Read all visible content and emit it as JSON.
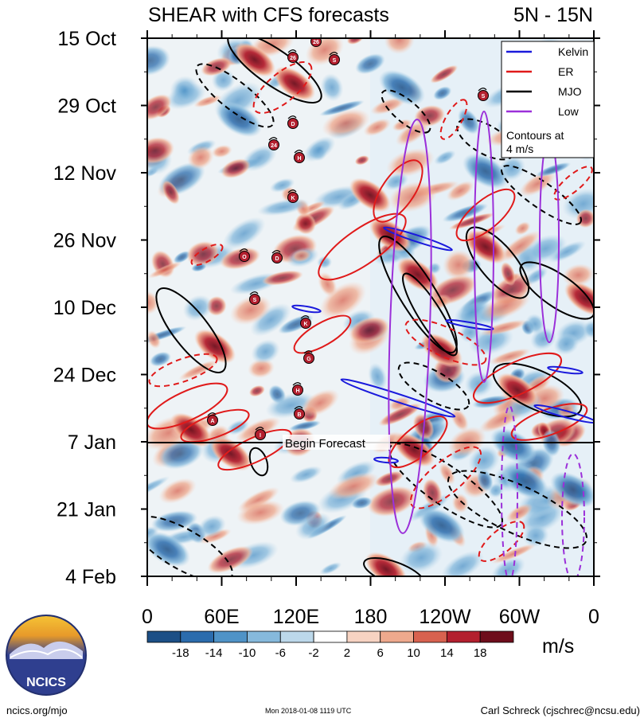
{
  "chart_data": {
    "type": "heatmap",
    "title": "SHEAR with CFS forecasts",
    "region": "5N - 15N",
    "y_axis": {
      "label": "",
      "ticks": [
        "15 Oct",
        "29 Oct",
        "12 Nov",
        "26 Nov",
        "10 Dec",
        "24 Dec",
        "7 Jan",
        "21 Jan",
        "4 Feb"
      ],
      "orientation": "time increasing downward"
    },
    "x_axis": {
      "label": "",
      "ticks": [
        "0",
        "60E",
        "120E",
        "180",
        "120W",
        "60W",
        "0"
      ],
      "range_degrees_east": [
        0,
        360
      ]
    },
    "forecast_marker": {
      "label": "Begin Forecast",
      "date": "7 Jan"
    },
    "colorbar": {
      "units": "m/s",
      "levels": [
        -18,
        -14,
        -10,
        -6,
        -2,
        2,
        6,
        10,
        14,
        18
      ],
      "labels": [
        "-18",
        "-14",
        "-10",
        "-6",
        "-2",
        "2",
        "6",
        "10",
        "14",
        "18"
      ],
      "colors": [
        "#1c4f86",
        "#2b6cad",
        "#4f93c7",
        "#86b9dc",
        "#bcd8ea",
        "#ffffff",
        "#f7d3c2",
        "#eea98d",
        "#d8624f",
        "#b31f2e",
        "#6e0d1b"
      ]
    },
    "legend": {
      "entries": [
        {
          "name": "Kelvin",
          "color": "#1a1adc"
        },
        {
          "name": "ER",
          "color": "#e01a1a"
        },
        {
          "name": "MJO",
          "color": "#000000"
        },
        {
          "name": "Low",
          "color": "#9b30d9"
        }
      ],
      "note": "Contours at\n4 m/s",
      "placement": "top-right"
    },
    "storm_symbols": [
      "26",
      "S",
      "D",
      "24",
      "H",
      "K",
      "O",
      "D",
      "S",
      "K",
      "G",
      "H",
      "B",
      "A",
      "I",
      "S",
      "26"
    ]
  },
  "footer": {
    "website": "ncics.org/mjo",
    "timestamp": "Mon 2018-01-08 1119 UTC",
    "author": "Carl Schreck (cjschrec@ncsu.edu)",
    "logo_text": "NCICS"
  }
}
